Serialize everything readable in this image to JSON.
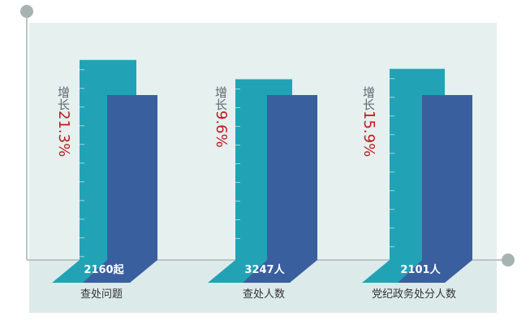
{
  "chart_data": {
    "type": "bar",
    "categories": [
      "查处问题",
      "查处人数",
      "党纪政务处分人数"
    ],
    "values": [
      2160,
      3247,
      2101
    ],
    "value_labels": [
      "2160起",
      "3247人",
      "2101人"
    ],
    "growth_prefix": "增长",
    "growth": [
      "21.3%",
      "9.6%",
      "15.9%"
    ],
    "growth_values": [
      21.3,
      9.6,
      15.9
    ],
    "title": "",
    "xlabel": "",
    "ylabel": "",
    "legend": "none",
    "grid": false
  },
  "colors": {
    "background_panel": "#e5f0ef",
    "floor_panel": "#d8eaea",
    "teal_bar": "#22a3b5",
    "blue_bar": "#3a5f9f",
    "axis": "#b8c6c6",
    "axis_dot": "#a7b3b3",
    "growth_text": "#c0181e"
  }
}
